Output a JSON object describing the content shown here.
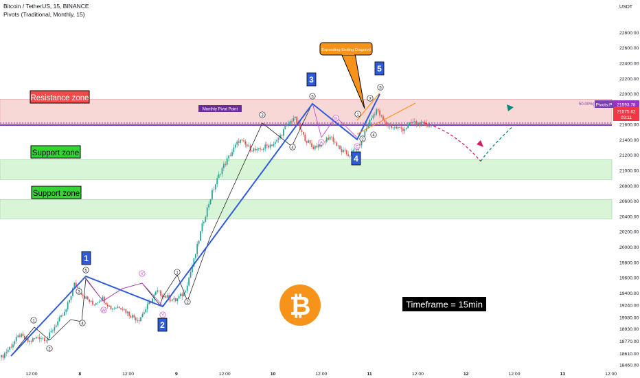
{
  "header": {
    "symbol_line": "Bitcoin / TetherUS, 15, BINANCE",
    "indicator_line": "Pivots (Traditional, Monthly, 15)"
  },
  "chart_data": {
    "type": "candlestick",
    "ylim": [
      18380,
      23100
    ],
    "price_axis": {
      "currency": "USDT",
      "ticks": [
        18460,
        18610,
        18770,
        18930,
        19080,
        19240,
        19400,
        19600,
        19800,
        20000,
        20200,
        20400,
        20600,
        20800,
        21000,
        21200,
        21400,
        21600,
        21800,
        22000,
        22200,
        22400,
        22600,
        22800
      ]
    },
    "time_axis": {
      "ticks": [
        "12:00",
        "8",
        "12:00",
        "9",
        "12:00",
        "10",
        "12:00",
        "11",
        "12:00",
        "12",
        "12:00",
        "13",
        "12:00"
      ]
    },
    "zones": [
      {
        "label": "Resistance zone",
        "from": 21610,
        "to": 21930,
        "color": "#f8d7d7",
        "label_bg": "#f04b4b"
      },
      {
        "label": "Support zone",
        "from": 20880,
        "to": 21140,
        "color": "#d8f5d8",
        "label_bg": "#36d336"
      },
      {
        "label": "Support zone",
        "from": 20370,
        "to": 20620,
        "color": "#d8f5d8",
        "label_bg": "#36d336"
      }
    ],
    "pivot": {
      "label": "Monthly Pivot Point",
      "value": 21592,
      "tag": "Pivots:P",
      "fib_text": "50.00%(2",
      "color": "#7b3fb0"
    },
    "price_tags": [
      {
        "value_text": "21593.78",
        "color": "#9b30c8"
      },
      {
        "value_text": "21575.62",
        "color": "#f23645",
        "sub": "03:11"
      }
    ],
    "price_path": [
      [
        0,
        18560
      ],
      [
        1,
        18700
      ],
      [
        2,
        18850
      ],
      [
        3,
        18760
      ],
      [
        4,
        18830
      ],
      [
        5,
        18800
      ],
      [
        6,
        19000
      ],
      [
        7,
        19150
      ],
      [
        8,
        19520
      ],
      [
        9,
        19360
      ],
      [
        10,
        19250
      ],
      [
        11,
        19340
      ],
      [
        12,
        19200
      ],
      [
        13,
        19230
      ],
      [
        14,
        19120
      ],
      [
        15,
        19050
      ],
      [
        16,
        19230
      ],
      [
        17,
        19420
      ],
      [
        18,
        19350
      ],
      [
        19,
        19300
      ],
      [
        20,
        19400
      ],
      [
        21,
        19800
      ],
      [
        22,
        20300
      ],
      [
        23,
        20700
      ],
      [
        24,
        21000
      ],
      [
        25,
        21200
      ],
      [
        26,
        21400
      ],
      [
        27,
        21300
      ],
      [
        28,
        21250
      ],
      [
        29,
        21320
      ],
      [
        30,
        21360
      ],
      [
        31,
        21550
      ],
      [
        32,
        21700
      ],
      [
        33,
        21450
      ],
      [
        34,
        21300
      ],
      [
        35,
        21350
      ],
      [
        36,
        21450
      ],
      [
        37,
        21270
      ],
      [
        38,
        21200
      ],
      [
        39,
        21300
      ],
      [
        40,
        21580
      ],
      [
        41,
        21800
      ],
      [
        42,
        21600
      ],
      [
        43,
        21560
      ],
      [
        44,
        21540
      ],
      [
        45,
        21630
      ],
      [
        46,
        21600
      ],
      [
        47,
        21590
      ]
    ],
    "projection_down": [
      [
        618,
        21620
      ],
      [
        662,
        21510
      ],
      [
        700,
        21120
      ]
    ],
    "projection_up": [
      [
        700,
        21120
      ],
      [
        714,
        21300
      ],
      [
        745,
        21560
      ]
    ],
    "waves": [
      {
        "label": "1",
        "kind": "major",
        "value": 19470
      },
      {
        "label": "2",
        "kind": "major",
        "value": 19030
      },
      {
        "label": "3",
        "kind": "major",
        "value": 21690
      },
      {
        "label": "4",
        "kind": "major",
        "value": 21180
      },
      {
        "label": "5",
        "kind": "major",
        "value": 21830
      },
      {
        "label": "1",
        "kind": "minor"
      },
      {
        "label": "2",
        "kind": "minor"
      },
      {
        "label": "3",
        "kind": "minor"
      },
      {
        "label": "4",
        "kind": "minor"
      },
      {
        "label": "5",
        "kind": "minor"
      },
      {
        "label": "W",
        "kind": "corrective"
      },
      {
        "label": "X",
        "kind": "corrective"
      },
      {
        "label": "Y",
        "kind": "corrective"
      },
      {
        "label": "A",
        "kind": "corrective"
      },
      {
        "label": "B",
        "kind": "corrective"
      },
      {
        "label": "C",
        "kind": "corrective"
      }
    ],
    "annotations": {
      "callout": "Expanding Ending Diagonal",
      "timeframe": "Timeframe = 15min",
      "bitcoin_symbol": "₿"
    },
    "colors": {
      "wave_line": "#2e5bd9",
      "candle_up": "#26a69a",
      "candle_down": "#ef5350",
      "callout": "#f7931a",
      "projection": "#d81b60",
      "projection_up": "#00897b"
    }
  }
}
